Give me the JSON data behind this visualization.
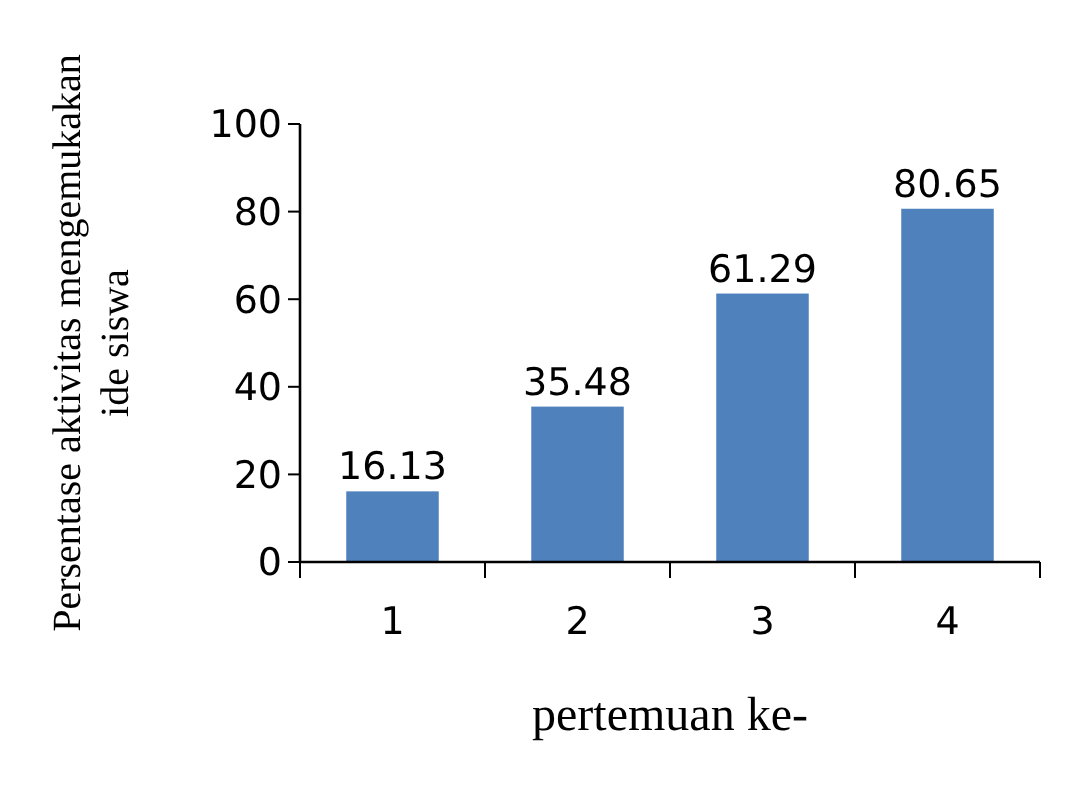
{
  "chart_data": {
    "type": "bar",
    "categories": [
      "1",
      "2",
      "3",
      "4"
    ],
    "values": [
      16.13,
      35.48,
      61.29,
      80.65
    ],
    "color": "#4f81bd",
    "ylim": [
      0,
      100
    ],
    "yticks": [
      0,
      20,
      40,
      60,
      80,
      100
    ],
    "xlabel": "pertemuan ke-",
    "ylabel": "Persentase aktivitas mengemukakan ide siswa",
    "data_labels": true,
    "grid": false
  }
}
